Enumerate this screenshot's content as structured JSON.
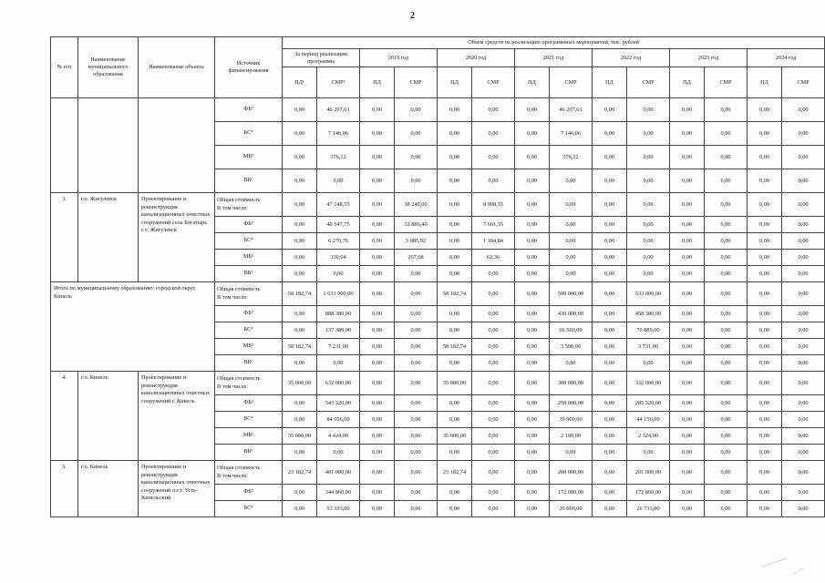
{
  "page": {
    "number": "2"
  },
  "colors": {
    "paper": "#fdfdfb",
    "border": "#454545",
    "text": "#1c1c1c"
  },
  "table": {
    "header": {
      "num": "№ п/п",
      "municipality": "Наименование муниципального образования",
      "object": "Наименование объекта",
      "source": "Источник финансирования",
      "volume_title": "Объем средств на реализацию программных мероприятий, тыс. рублей",
      "year_groups": [
        {
          "label": "За период реализации программы",
          "pd": "ПД¹",
          "smr": "СМР²"
        },
        {
          "label": "2019 год",
          "pd": "ПД",
          "smr": "СМР"
        },
        {
          "label": "2020 год",
          "pd": "ПД",
          "smr": "СМР"
        },
        {
          "label": "2021 год",
          "pd": "ПД",
          "smr": "СМР"
        },
        {
          "label": "2022 год",
          "pd": "ПД",
          "smr": "СМР"
        },
        {
          "label": "2023 год",
          "pd": "ПД",
          "smr": "СМР"
        },
        {
          "label": "2024 год",
          "pd": "ПД",
          "smr": "СМР"
        }
      ]
    },
    "groups": [
      {
        "type": "continuation",
        "num": "",
        "municipality": "",
        "object": "",
        "rows": [
          {
            "source": "ФБ³",
            "values": [
              "0,00",
              "46 207,61",
              "0,00",
              "0,00",
              "0,00",
              "0,00",
              "0,00",
              "46 207,61",
              "0,00",
              "0,00",
              "0,00",
              "0,00",
              "0,00",
              "0,00"
            ]
          },
          {
            "source": "БС⁴",
            "values": [
              "0,00",
              "7 146,06",
              "0,00",
              "0,00",
              "0,00",
              "0,00",
              "0,00",
              "7 146,06",
              "0,00",
              "0,00",
              "0,00",
              "0,00",
              "0,00",
              "0,00"
            ]
          },
          {
            "source": "МБ⁵",
            "values": [
              "0,00",
              "376,12",
              "0,00",
              "0,00",
              "0,00",
              "0,00",
              "0,00",
              "376,12",
              "0,00",
              "0,00",
              "0,00",
              "0,00",
              "0,00",
              "0,00"
            ]
          },
          {
            "source": "ВБ⁶",
            "values": [
              "0,00",
              "0,00",
              "0,00",
              "0,00",
              "0,00",
              "0,00",
              "0,00",
              "0,00",
              "0,00",
              "0,00",
              "0,00",
              "0,00",
              "0,00",
              "0,00"
            ]
          }
        ]
      },
      {
        "type": "item",
        "num": "3.",
        "municipality": "г.о. Жигулевск",
        "object": "Проектирование и реконструкция канализационных очистных сооружений села Богатырь г.о. Жигулевск",
        "rows": [
          {
            "source": "Общая стоимость\nВ том числе:",
            "values": [
              "0,00",
              "47 148,55",
              "0,00",
              "38 240,00",
              "0,00",
              "8 908,55",
              "0,00",
              "0,00",
              "0,00",
              "0,00",
              "0,00",
              "0,00",
              "0,00",
              "0,00"
            ]
          },
          {
            "source": "ФБ³",
            "values": [
              "0,00",
              "40 547,75",
              "0,00",
              "32 886,40",
              "0,00",
              "7 661,35",
              "0,00",
              "0,00",
              "0,00",
              "0,00",
              "0,00",
              "0,00",
              "0,00",
              "0,00"
            ]
          },
          {
            "source": "БС⁴",
            "values": [
              "0,00",
              "6 270,76",
              "0,00",
              "5 085,92",
              "0,00",
              "1 184,84",
              "0,00",
              "0,00",
              "0,00",
              "0,00",
              "0,00",
              "0,00",
              "0,00",
              "0,00"
            ]
          },
          {
            "source": "МБ⁵",
            "values": [
              "0,00",
              "330,04",
              "0,00",
              "267,68",
              "0,00",
              "62,36",
              "0,00",
              "0,00",
              "0,00",
              "0,00",
              "0,00",
              "0,00",
              "0,00",
              "0,00"
            ]
          },
          {
            "source": "ВБ⁶",
            "values": [
              "0,00",
              "0,00",
              "0,00",
              "0,00",
              "0,00",
              "0,00",
              "0,00",
              "0,00",
              "0,00",
              "0,00",
              "0,00",
              "0,00",
              "0,00",
              "0,00"
            ]
          }
        ]
      },
      {
        "type": "total",
        "label": "Итого по муниципальному образованию: городской округ Кинель",
        "rows": [
          {
            "source": "Общая стоимость\nВ том числе:",
            "values": [
              "58 182,74",
              "1 033 000,00",
              "0,00",
              "0,00",
              "58 182,74",
              "0,00",
              "0,00",
              "500 000,00",
              "0,00",
              "533 000,00",
              "0,00",
              "0,00",
              "0,00",
              "0,00"
            ]
          },
          {
            "source": "ФБ³",
            "values": [
              "0,00",
              "888 380,00",
              "0,00",
              "0,00",
              "0,00",
              "0,00",
              "0,00",
              "430 000,00",
              "0,00",
              "458 380,00",
              "0,00",
              "0,00",
              "0,00",
              "0,00"
            ]
          },
          {
            "source": "БС⁴",
            "values": [
              "0,00",
              "137 389,00",
              "0,00",
              "0,00",
              "0,00",
              "0,00",
              "0,00",
              "66 500,00",
              "0,00",
              "70 889,00",
              "0,00",
              "0,00",
              "0,00",
              "0,00"
            ]
          },
          {
            "source": "МБ⁵",
            "values": [
              "58 182,74",
              "7 231,00",
              "0,00",
              "0,00",
              "58 182,74",
              "0,00",
              "0,00",
              "3 500,00",
              "0,00",
              "3 731,00",
              "0,00",
              "0,00",
              "0,00",
              "0,00"
            ]
          },
          {
            "source": "ВБ⁶",
            "values": [
              "0,00",
              "0,00",
              "0,00",
              "0,00",
              "0,00",
              "0,00",
              "0,00",
              "0,00",
              "0,00",
              "0,00",
              "0,00",
              "0,00",
              "0,00",
              "0,00"
            ]
          }
        ]
      },
      {
        "type": "item",
        "num": "4.",
        "municipality": "г.о. Кинель",
        "object": "Проектирование и реконструкция канализационных очистных сооружений г. Кинель",
        "rows": [
          {
            "source": "Общая стоимость\nВ том числе:",
            "values": [
              "35 000,00",
              "632 000,00",
              "0,00",
              "0,00",
              "35 000,00",
              "0,00",
              "0,00",
              "300 000,00",
              "0,00",
              "332 000,00",
              "0,00",
              "0,00",
              "0,00",
              "0,00"
            ]
          },
          {
            "source": "ФБ³",
            "values": [
              "0,00",
              "543 520,00",
              "0,00",
              "0,00",
              "0,00",
              "0,00",
              "0,00",
              "258 000,00",
              "0,00",
              "285 520,00",
              "0,00",
              "0,00",
              "0,00",
              "0,00"
            ]
          },
          {
            "source": "БС⁴",
            "values": [
              "0,00",
              "84 056,00",
              "0,00",
              "0,00",
              "0,00",
              "0,00",
              "0,00",
              "39 900,00",
              "0,00",
              "44 156,00",
              "0,00",
              "0,00",
              "0,00",
              "0,00"
            ]
          },
          {
            "source": "МБ⁵",
            "values": [
              "35 000,00",
              "4 424,00",
              "0,00",
              "0,00",
              "35 000,00",
              "0,00",
              "0,00",
              "2 100,00",
              "0,00",
              "2 324,00",
              "0,00",
              "0,00",
              "0,00",
              "0,00"
            ]
          },
          {
            "source": "ВБ⁶",
            "values": [
              "0,00",
              "0,00",
              "0,00",
              "0,00",
              "0,00",
              "0,00",
              "0,00",
              "0,00",
              "0,00",
              "0,00",
              "0,00",
              "0,00",
              "0,00",
              "0,00"
            ]
          }
        ]
      },
      {
        "type": "item",
        "num": "5.",
        "municipality": "г.о. Кинель",
        "object": "Проектирование и реконструкция канализационных очистных сооружений п.г.т. Усть-Кинельский",
        "rows": [
          {
            "source": "Общая стоимость\nВ том числе:",
            "values": [
              "23 182,74",
              "401 000,00",
              "0,00",
              "0,00",
              "23 182,74",
              "0,00",
              "0,00",
              "200 000,00",
              "0,00",
              "201 000,00",
              "0,00",
              "0,00",
              "0,00",
              "0,00"
            ]
          },
          {
            "source": "ФБ³",
            "values": [
              "0,00",
              "344 860,00",
              "0,00",
              "0,00",
              "0,00",
              "0,00",
              "0,00",
              "172 000,00",
              "0,00",
              "172 860,00",
              "0,00",
              "0,00",
              "0,00",
              "0,00"
            ]
          },
          {
            "source": "БС⁴",
            "values": [
              "0,00",
              "53 333,00",
              "0,00",
              "0,00",
              "0,00",
              "0,00",
              "0,00",
              "26 600,00",
              "0,00",
              "26 733,00",
              "0,00",
              "0,00",
              "0,00",
              "0,00"
            ]
          }
        ]
      }
    ]
  }
}
